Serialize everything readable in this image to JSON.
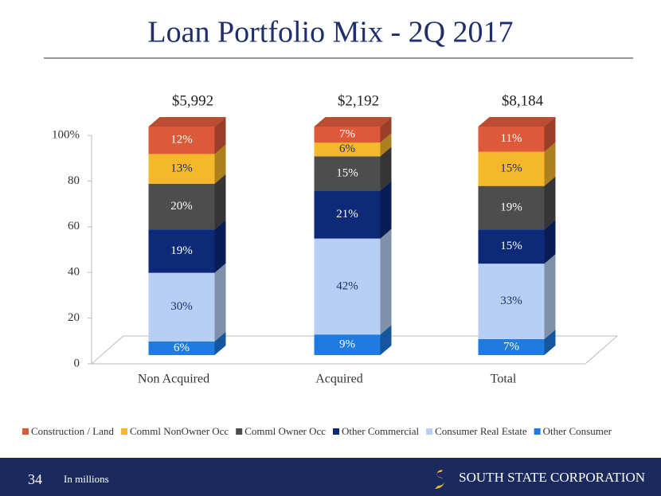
{
  "chart_data": {
    "type": "stacked-bar-3d",
    "title": "Loan Portfolio Mix - 2Q 2017",
    "categories": [
      "Non Acquired",
      "Acquired",
      "Total"
    ],
    "annotations": [
      "$5,992",
      "$2,192",
      "$8,184"
    ],
    "series": [
      {
        "name": "Other Consumer",
        "color": "#1f7be0",
        "values": [
          6,
          9,
          7
        ],
        "value_labels": [
          "6%",
          "9%",
          "7%"
        ]
      },
      {
        "name": "Consumer Real Estate",
        "color": "#b7cff2",
        "values": [
          30,
          42,
          33
        ],
        "value_labels": [
          "30%",
          "42%",
          "33%"
        ]
      },
      {
        "name": "Other Commercial",
        "color": "#0c2a78",
        "values": [
          19,
          21,
          15
        ],
        "value_labels": [
          "19%",
          "21%",
          "15%"
        ]
      },
      {
        "name": "Comml Owner Occ",
        "color": "#4d4d4d",
        "values": [
          20,
          15,
          19
        ],
        "value_labels": [
          "20%",
          "15%",
          "19%"
        ]
      },
      {
        "name": "Comml NonOwner Occ",
        "color": "#f6b82b",
        "values": [
          13,
          6,
          15
        ],
        "value_labels": [
          "13%",
          "6%",
          "15%"
        ]
      },
      {
        "name": "Construction / Land",
        "color": "#dc5a3a",
        "values": [
          12,
          7,
          11
        ],
        "value_labels": [
          "12%",
          "7%",
          "11%"
        ]
      }
    ],
    "ylim": [
      0,
      100
    ],
    "yticks": [
      0,
      20,
      40,
      60,
      80,
      {
        "value": 100,
        "label": "100%"
      }
    ]
  },
  "footer": {
    "page_number": "34",
    "note": "In millions",
    "logo": "SOUTH STATE CORPORATION"
  }
}
